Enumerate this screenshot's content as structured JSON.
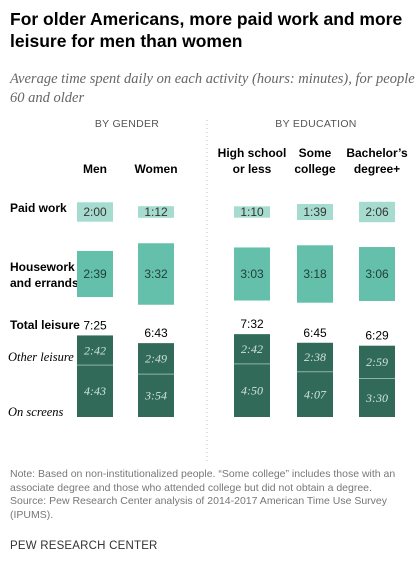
{
  "title": "For older Americans, more paid work and more leisure for men than women",
  "subtitle": "Average time spent daily on each activity (hours: minutes), for people 60 and older",
  "notes": {
    "note": "Note: Based on non-institutionalized people. “Some college” includes those with an associate degree and those who attended college but did not obtain a degree.",
    "source": "Source: Pew Research Center analysis of 2014-2017 American Time Use Survey (IPUMS)."
  },
  "footer": "PEW RESEARCH CENTER",
  "colors": {
    "light": "#a6dccf",
    "medium": "#64bfab",
    "dark": "#326a59",
    "divider": "#8fb3a8",
    "separator": "#bbbbbb"
  },
  "chart_data": {
    "type": "bar",
    "groups": [
      {
        "label": "BY GENDER",
        "categories": [
          "Men",
          "Women"
        ]
      },
      {
        "label": "BY EDUCATION",
        "categories": [
          "High school or less",
          "Some college",
          "Bachelor’s degree+"
        ]
      }
    ],
    "category_labels": [
      [
        "Men"
      ],
      [
        "Women"
      ],
      [
        "High school",
        "or less"
      ],
      [
        "Some",
        "college"
      ],
      [
        "Bachelor’s",
        "degree+"
      ]
    ],
    "row_labels": {
      "paid_work": [
        "Paid work"
      ],
      "housework": [
        "Housework",
        "and errands"
      ],
      "total_leisure": [
        "Total leisure"
      ],
      "other_leisure": [
        "Other leisure"
      ],
      "on_screens": [
        "On screens"
      ]
    },
    "series": [
      {
        "key": "paid_work",
        "labels": [
          "2:00",
          "1:12",
          "1:10",
          "1:39",
          "2:06"
        ],
        "minutes": [
          120,
          72,
          70,
          99,
          126
        ]
      },
      {
        "key": "housework",
        "labels": [
          "2:39",
          "3:32",
          "3:03",
          "3:18",
          "3:06"
        ],
        "minutes": [
          159,
          212,
          183,
          198,
          186
        ]
      },
      {
        "key": "total_leisure",
        "labels": [
          "7:25",
          "6:43",
          "7:32",
          "6:45",
          "6:29"
        ],
        "minutes": [
          445,
          403,
          452,
          405,
          389
        ]
      },
      {
        "key": "other_leisure",
        "labels": [
          "2:42",
          "2:49",
          "2:42",
          "2:38",
          "2:59"
        ],
        "minutes": [
          162,
          169,
          162,
          158,
          179
        ]
      },
      {
        "key": "on_screens",
        "labels": [
          "4:43",
          "3:54",
          "4:50",
          "4:07",
          "3:30"
        ],
        "minutes": [
          283,
          234,
          290,
          247,
          210
        ]
      }
    ]
  }
}
